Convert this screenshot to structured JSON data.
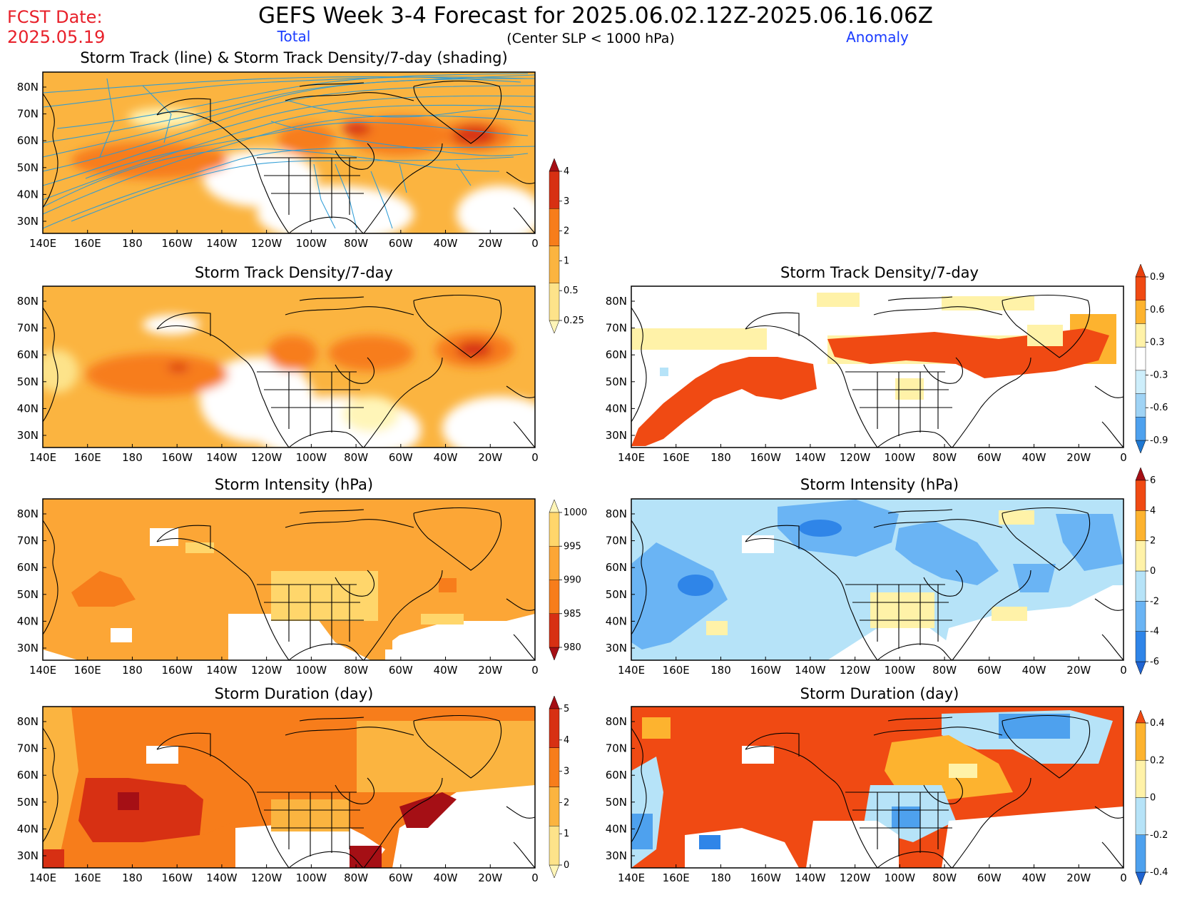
{
  "header": {
    "fcst_label": "FCST Date:",
    "fcst_date": "2025.05.19",
    "title": "GEFS Week 3-4 Forecast for 2025.06.02.12Z-2025.06.16.06Z",
    "subtitle": "(Center SLP < 1000 hPa)",
    "col_total": "Total",
    "col_anomaly": "Anomaly"
  },
  "axes": {
    "lon_labels": [
      "140E",
      "160E",
      "180",
      "160W",
      "140W",
      "120W",
      "100W",
      "80W",
      "60W",
      "40W",
      "20W",
      "0"
    ],
    "lat_labels": [
      "80N",
      "70N",
      "60N",
      "50N",
      "40N",
      "30N"
    ]
  },
  "panels": {
    "track": {
      "title": "Storm Track (line) & Storm Track Density/7-day (shading)"
    },
    "density_total": {
      "title": "Storm Track Density/7-day"
    },
    "density_anom": {
      "title": "Storm Track Density/7-day"
    },
    "intensity_total": {
      "title": "Storm Intensity (hPa)"
    },
    "intensity_anom": {
      "title": "Storm Intensity (hPa)"
    },
    "duration_total": {
      "title": "Storm Duration (day)"
    },
    "duration_anom": {
      "title": "Storm Duration (day)"
    }
  },
  "colorbars": {
    "density_total": {
      "labels": [
        "0.25",
        "0.5",
        "1",
        "2",
        "3",
        "4"
      ],
      "colors": [
        "#fff5b8",
        "#fde38a",
        "#fbb440",
        "#f77d1b",
        "#d73013",
        "#a50f15"
      ]
    },
    "density_anom": {
      "labels": [
        "-0.9",
        "-0.6",
        "-0.3",
        "0.3",
        "0.6",
        "0.9"
      ],
      "colors": [
        "#1f78d2",
        "#4ea1ee",
        "#9fd3f5",
        "#cdeefb",
        "#ffffff",
        "#fff2a8",
        "#fdb32f",
        "#f04a13",
        "#e8400e"
      ]
    },
    "intensity_total": {
      "labels": [
        "980",
        "985",
        "990",
        "995",
        "1000"
      ],
      "colors": [
        "#a50f15",
        "#d73013",
        "#f77d1b",
        "#fca636",
        "#ffd66b",
        "#fff5b8"
      ]
    },
    "intensity_anom": {
      "labels": [
        "-6",
        "-4",
        "-2",
        "0",
        "2",
        "4",
        "6"
      ],
      "colors": [
        "#1f64d2",
        "#2f85e8",
        "#6ab4f4",
        "#b6e3f8",
        "#fff2a8",
        "#fdb32f",
        "#f04a13",
        "#a50f15"
      ]
    },
    "duration_total": {
      "labels": [
        "0",
        "1",
        "2",
        "3",
        "4",
        "5"
      ],
      "colors": [
        "#fff5b8",
        "#fde38a",
        "#fbb440",
        "#f77d1b",
        "#d73013",
        "#a50f15"
      ]
    },
    "duration_anom": {
      "labels": [
        "-0.4",
        "-0.2",
        "0",
        "0.2",
        "0.4"
      ],
      "colors": [
        "#1f64d2",
        "#4ea1ee",
        "#b6e3f8",
        "#fff2a8",
        "#fdb32f",
        "#f04a13"
      ]
    }
  },
  "colors": {
    "track_line": "#2b9bd6",
    "title_red": "#e8202a",
    "label_blue": "#1a3cff"
  }
}
